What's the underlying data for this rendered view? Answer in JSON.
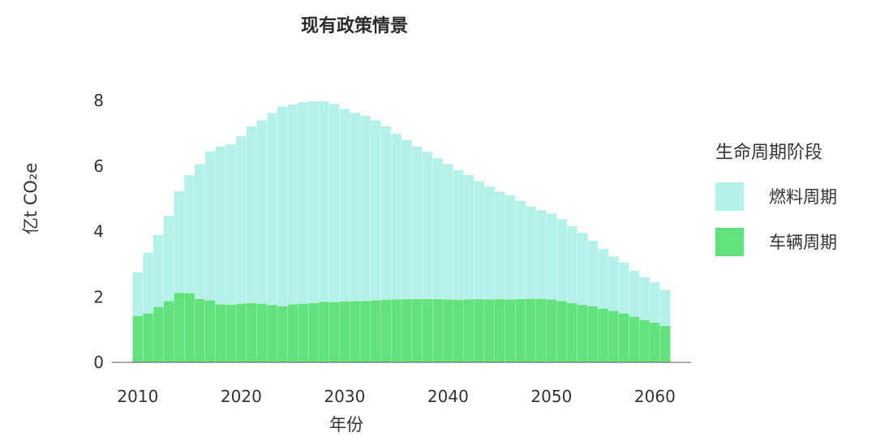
{
  "title": "现有政策情景",
  "legend": {
    "title": "生命周期阶段",
    "items": [
      {
        "label": "燃料周期",
        "color": "#b3f1e9"
      },
      {
        "label": "车辆周期",
        "color": "#61e27c"
      }
    ]
  },
  "chart_data": {
    "type": "bar",
    "stacked": true,
    "xlabel": "年份",
    "ylabel": "亿t CO₂e",
    "xlim": [
      2007.5,
      2063.5
    ],
    "ylim": [
      0,
      8.4
    ],
    "xticks": [
      2010,
      2020,
      2030,
      2040,
      2050,
      2060
    ],
    "yticks": [
      0,
      2,
      4,
      6,
      8
    ],
    "grid": false,
    "legend_position": "right",
    "x": [
      2010,
      2011,
      2012,
      2013,
      2014,
      2015,
      2016,
      2017,
      2018,
      2019,
      2020,
      2021,
      2022,
      2023,
      2024,
      2025,
      2026,
      2027,
      2028,
      2029,
      2030,
      2031,
      2032,
      2033,
      2034,
      2035,
      2036,
      2037,
      2038,
      2039,
      2040,
      2041,
      2042,
      2043,
      2044,
      2045,
      2046,
      2047,
      2048,
      2049,
      2050,
      2051,
      2052,
      2053,
      2054,
      2055,
      2056,
      2057,
      2058,
      2059,
      2060,
      2061
    ],
    "series": [
      {
        "name": "车辆周期",
        "color": "#61e27c",
        "values": [
          1.42,
          1.5,
          1.7,
          1.88,
          2.13,
          2.12,
          1.94,
          1.9,
          1.78,
          1.77,
          1.8,
          1.82,
          1.8,
          1.76,
          1.72,
          1.78,
          1.8,
          1.82,
          1.86,
          1.85,
          1.87,
          1.88,
          1.88,
          1.9,
          1.92,
          1.93,
          1.94,
          1.94,
          1.94,
          1.94,
          1.93,
          1.92,
          1.93,
          1.94,
          1.93,
          1.94,
          1.93,
          1.94,
          1.95,
          1.95,
          1.93,
          1.88,
          1.82,
          1.76,
          1.72,
          1.65,
          1.58,
          1.5,
          1.4,
          1.3,
          1.22,
          1.12
        ]
      },
      {
        "name": "燃料周期",
        "color": "#b3f1e9",
        "values": [
          1.33,
          1.85,
          2.2,
          2.6,
          3.1,
          3.6,
          4.12,
          4.55,
          4.82,
          4.9,
          5.12,
          5.4,
          5.6,
          5.86,
          6.1,
          6.1,
          6.15,
          6.16,
          6.12,
          6.05,
          5.88,
          5.75,
          5.66,
          5.5,
          5.3,
          5.06,
          4.86,
          4.66,
          4.5,
          4.3,
          4.13,
          3.96,
          3.8,
          3.6,
          3.44,
          3.28,
          3.18,
          3.0,
          2.82,
          2.7,
          2.62,
          2.5,
          2.35,
          2.2,
          2.0,
          1.82,
          1.66,
          1.55,
          1.4,
          1.3,
          1.23,
          1.1
        ]
      }
    ]
  }
}
